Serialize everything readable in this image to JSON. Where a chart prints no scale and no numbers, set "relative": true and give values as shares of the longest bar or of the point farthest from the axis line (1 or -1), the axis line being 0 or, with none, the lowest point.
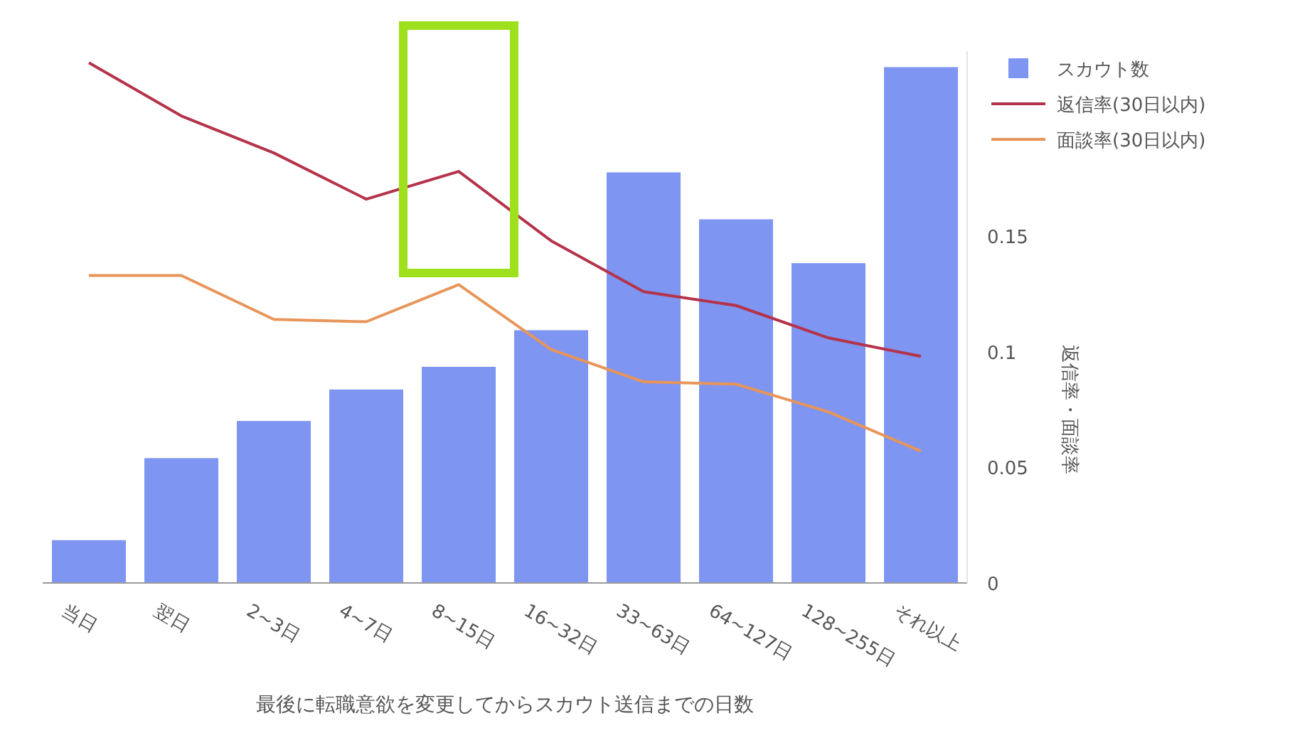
{
  "chart_data": {
    "type": "bar",
    "relative": true,
    "xlabel": "最後に転職意欲を変更してからスカウト送信までの日数",
    "y2label": "返信率・面談率",
    "categories": [
      "当日",
      "翌日",
      "2~3日",
      "4~7日",
      "8~15日",
      "16~32日",
      "33~63日",
      "64~127日",
      "128~255日",
      "それ以上"
    ],
    "series": [
      {
        "name": "スカウト数",
        "color": "#7f95f2",
        "values": [
          0.083,
          0.242,
          0.314,
          0.375,
          0.419,
          0.49,
          0.796,
          0.705,
          0.62,
          1
        ]
      },
      {
        "name": "返信率(30日以内)",
        "type": "line",
        "axis": "y2",
        "color": "#b5334a",
        "values": [
          0.225,
          0.202,
          0.186,
          0.166,
          0.178,
          0.148,
          0.126,
          0.12,
          0.106,
          0.098
        ]
      },
      {
        "name": "面談率(30日以内)",
        "type": "line",
        "axis": "y2",
        "color": "#e8955a",
        "values": [
          0.133,
          0.133,
          0.114,
          0.113,
          0.129,
          0.101,
          0.087,
          0.086,
          0.074,
          0.057
        ]
      }
    ],
    "y2lim": [
      0,
      0.23
    ],
    "y2ticks": [
      0,
      0.05,
      0.1,
      0.15
    ],
    "legend": "top right",
    "marker": "none",
    "line_style": "solid"
  }
}
